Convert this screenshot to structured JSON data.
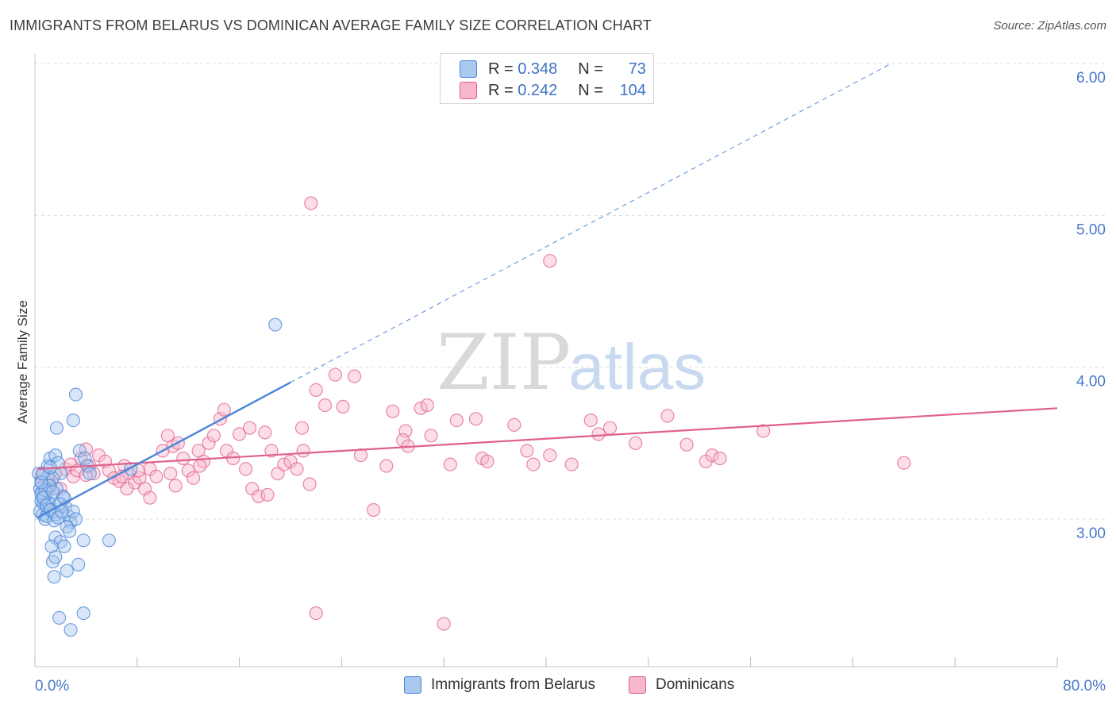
{
  "header": {
    "title": "IMMIGRANTS FROM BELARUS VS DOMINICAN AVERAGE FAMILY SIZE CORRELATION CHART",
    "source": "Source: ZipAtlas.com"
  },
  "watermark": {
    "zip": "ZIP",
    "atlas": "atlas"
  },
  "legend_stats": [
    {
      "r_label": "R =",
      "r_value": "0.348",
      "n_label": "N =",
      "n_value": "73",
      "color": "#a9c8ee"
    },
    {
      "r_label": "R =",
      "r_value": "0.242",
      "n_label": "N =",
      "n_value": "104",
      "color": "#f6b6cb"
    }
  ],
  "chart_data": {
    "type": "scatter",
    "title": "IMMIGRANTS FROM BELARUS VS DOMINICAN AVERAGE FAMILY SIZE CORRELATION CHART",
    "xlabel": "",
    "ylabel": "Average Family Size",
    "xlim": [
      0,
      80
    ],
    "ylim": [
      2.0,
      6.2
    ],
    "x_tick_labels": {
      "min": "0.0%",
      "max": "80.0%"
    },
    "y_ticks": [
      3.0,
      4.0,
      5.0,
      6.0
    ],
    "y_tick_labels": [
      "3.00",
      "4.00",
      "5.00",
      "6.00"
    ],
    "grid": "horizontal dashed",
    "legend_position": "bottom",
    "series": [
      {
        "name": "Immigrants from Belarus",
        "color": "#4a86d8",
        "fill": "#a9c8ee",
        "trend": {
          "x0": 0.2,
          "y0": 3.01,
          "x1": 20.0,
          "y1": 3.9,
          "extended_to_x": 67.0,
          "extended_to_y": 6.0
        },
        "points": [
          [
            0.3,
            3.3
          ],
          [
            0.5,
            3.25
          ],
          [
            0.4,
            3.2
          ],
          [
            0.6,
            3.18
          ],
          [
            0.8,
            3.15
          ],
          [
            0.5,
            3.12
          ],
          [
            0.7,
            3.1
          ],
          [
            0.9,
            3.08
          ],
          [
            0.4,
            3.05
          ],
          [
            0.6,
            3.03
          ],
          [
            0.8,
            3.0
          ],
          [
            1.0,
            3.28
          ],
          [
            1.2,
            3.22
          ],
          [
            0.5,
            3.17
          ],
          [
            0.7,
            3.14
          ],
          [
            1.1,
            3.1
          ],
          [
            1.3,
            3.06
          ],
          [
            0.9,
            3.02
          ],
          [
            1.5,
            2.99
          ],
          [
            1.0,
            3.35
          ],
          [
            1.2,
            3.4
          ],
          [
            1.6,
            3.42
          ],
          [
            1.8,
            3.37
          ],
          [
            2.0,
            3.3
          ],
          [
            1.4,
            3.27
          ],
          [
            1.7,
            3.2
          ],
          [
            2.2,
            3.15
          ],
          [
            1.9,
            3.1
          ],
          [
            1.5,
            3.05
          ],
          [
            2.4,
            3.08
          ],
          [
            2.6,
            3.02
          ],
          [
            2.8,
            2.98
          ],
          [
            3.0,
            3.05
          ],
          [
            3.2,
            3.0
          ],
          [
            2.5,
            2.95
          ],
          [
            2.7,
            2.92
          ],
          [
            1.6,
            2.88
          ],
          [
            2.0,
            2.85
          ],
          [
            2.3,
            2.82
          ],
          [
            1.3,
            2.82
          ],
          [
            1.4,
            2.72
          ],
          [
            1.6,
            2.75
          ],
          [
            1.5,
            2.62
          ],
          [
            2.5,
            2.66
          ],
          [
            3.4,
            2.7
          ],
          [
            3.8,
            2.86
          ],
          [
            5.8,
            2.86
          ],
          [
            3.5,
            3.45
          ],
          [
            3.2,
            3.82
          ],
          [
            3.0,
            3.65
          ],
          [
            1.7,
            3.6
          ],
          [
            3.9,
            3.4
          ],
          [
            4.1,
            3.35
          ],
          [
            4.3,
            3.3
          ],
          [
            1.1,
            3.22
          ],
          [
            0.8,
            3.19
          ],
          [
            0.6,
            3.14
          ],
          [
            0.9,
            3.09
          ],
          [
            1.2,
            3.06
          ],
          [
            1.6,
            3.03
          ],
          [
            1.8,
            3.01
          ],
          [
            2.0,
            3.1
          ],
          [
            2.3,
            3.14
          ],
          [
            1.4,
            3.18
          ],
          [
            0.5,
            3.24
          ],
          [
            0.6,
            3.3
          ],
          [
            1.2,
            3.34
          ],
          [
            1.9,
            2.35
          ],
          [
            2.8,
            2.27
          ],
          [
            3.8,
            2.38
          ],
          [
            18.8,
            4.28
          ],
          [
            7.5,
            3.33
          ],
          [
            2.1,
            3.05
          ]
        ]
      },
      {
        "name": "Dominicans",
        "color": "#e0608d",
        "fill": "#f6b6cb",
        "trend": {
          "x0": 0.2,
          "y0": 3.33,
          "x1": 80.0,
          "y1": 3.73
        },
        "points": [
          [
            0.5,
            3.28
          ],
          [
            0.7,
            3.22
          ],
          [
            1.0,
            3.18
          ],
          [
            1.3,
            3.25
          ],
          [
            1.6,
            3.3
          ],
          [
            2.0,
            3.2
          ],
          [
            2.4,
            3.33
          ],
          [
            2.8,
            3.36
          ],
          [
            3.0,
            3.28
          ],
          [
            3.3,
            3.32
          ],
          [
            3.6,
            3.4
          ],
          [
            4.0,
            3.46
          ],
          [
            4.3,
            3.35
          ],
          [
            4.6,
            3.3
          ],
          [
            5.0,
            3.42
          ],
          [
            5.5,
            3.38
          ],
          [
            5.8,
            3.32
          ],
          [
            6.2,
            3.27
          ],
          [
            6.6,
            3.25
          ],
          [
            7.0,
            3.35
          ],
          [
            7.4,
            3.3
          ],
          [
            7.8,
            3.24
          ],
          [
            8.2,
            3.27
          ],
          [
            8.6,
            3.2
          ],
          [
            9.0,
            3.33
          ],
          [
            9.5,
            3.28
          ],
          [
            10.0,
            3.45
          ],
          [
            10.4,
            3.55
          ],
          [
            10.8,
            3.48
          ],
          [
            11.2,
            3.5
          ],
          [
            11.6,
            3.4
          ],
          [
            12.0,
            3.32
          ],
          [
            12.4,
            3.27
          ],
          [
            12.8,
            3.45
          ],
          [
            13.2,
            3.38
          ],
          [
            13.6,
            3.5
          ],
          [
            14.0,
            3.55
          ],
          [
            14.5,
            3.66
          ],
          [
            15.0,
            3.45
          ],
          [
            15.5,
            3.4
          ],
          [
            16.0,
            3.56
          ],
          [
            16.5,
            3.33
          ],
          [
            17.0,
            3.2
          ],
          [
            17.5,
            3.15
          ],
          [
            18.0,
            3.57
          ],
          [
            18.5,
            3.45
          ],
          [
            19.0,
            3.3
          ],
          [
            19.5,
            3.36
          ],
          [
            20.0,
            3.38
          ],
          [
            20.5,
            3.33
          ],
          [
            21.0,
            3.45
          ],
          [
            21.5,
            3.23
          ],
          [
            22.0,
            3.85
          ],
          [
            22.7,
            3.75
          ],
          [
            23.5,
            3.95
          ],
          [
            24.1,
            3.74
          ],
          [
            25.0,
            3.94
          ],
          [
            25.5,
            3.42
          ],
          [
            26.5,
            3.06
          ],
          [
            27.5,
            3.35
          ],
          [
            28.0,
            3.71
          ],
          [
            29.0,
            3.58
          ],
          [
            30.2,
            3.73
          ],
          [
            30.7,
            3.75
          ],
          [
            31.0,
            3.55
          ],
          [
            32.5,
            3.36
          ],
          [
            33.0,
            3.65
          ],
          [
            34.5,
            3.66
          ],
          [
            35.0,
            3.4
          ],
          [
            37.5,
            3.62
          ],
          [
            38.5,
            3.45
          ],
          [
            39.0,
            3.36
          ],
          [
            40.3,
            3.42
          ],
          [
            42.0,
            3.36
          ],
          [
            43.5,
            3.65
          ],
          [
            45.0,
            3.6
          ],
          [
            47.0,
            3.5
          ],
          [
            49.5,
            3.68
          ],
          [
            51.0,
            3.49
          ],
          [
            52.5,
            3.38
          ],
          [
            53.0,
            3.42
          ],
          [
            57.0,
            3.58
          ],
          [
            68.0,
            3.37
          ],
          [
            21.6,
            5.08
          ],
          [
            40.3,
            4.7
          ],
          [
            22.0,
            2.38
          ],
          [
            32.0,
            2.31
          ],
          [
            9.0,
            3.14
          ],
          [
            4.0,
            3.29
          ],
          [
            7.2,
            3.2
          ],
          [
            16.8,
            3.6
          ],
          [
            10.6,
            3.3
          ],
          [
            6.8,
            3.28
          ],
          [
            14.8,
            3.72
          ],
          [
            12.9,
            3.35
          ],
          [
            18.2,
            3.16
          ],
          [
            20.9,
            3.6
          ],
          [
            35.4,
            3.38
          ],
          [
            28.8,
            3.52
          ],
          [
            29.2,
            3.48
          ],
          [
            44.1,
            3.56
          ],
          [
            53.6,
            3.4
          ],
          [
            8.1,
            3.32
          ],
          [
            11.0,
            3.22
          ]
        ]
      }
    ]
  },
  "bottom_legend": [
    {
      "label": "Immigrants from Belarus",
      "color": "#a9c8ee",
      "border": "#4a86d8"
    },
    {
      "label": "Dominicans",
      "color": "#f6b6cb",
      "border": "#e0608d"
    }
  ]
}
